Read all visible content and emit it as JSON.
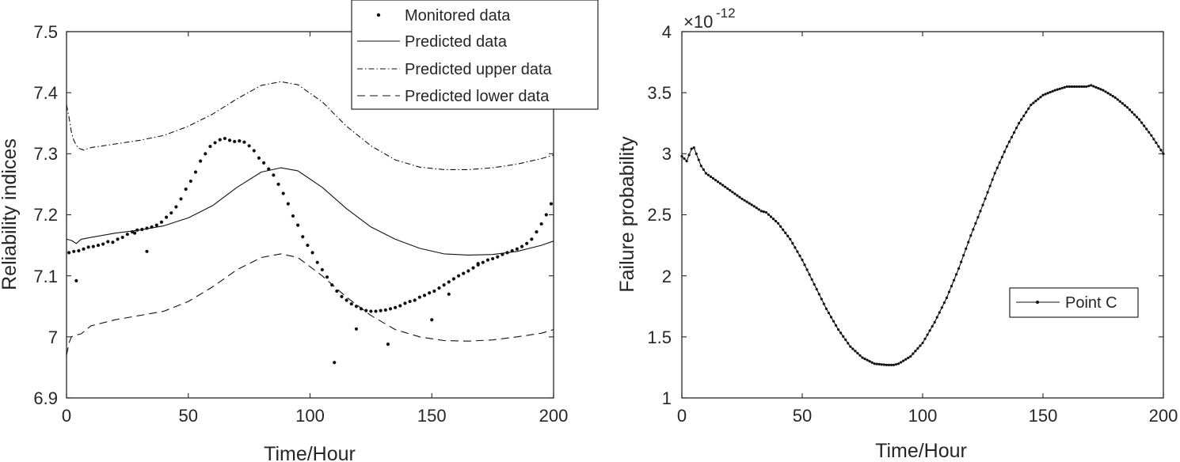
{
  "chart_data": [
    {
      "type": "line",
      "xlabel": "Time/Hour",
      "ylabel": "Reliability indices",
      "xlim": [
        0,
        200
      ],
      "ylim": [
        6.9,
        7.5
      ],
      "xticks": [
        "0",
        "50",
        "100",
        "150",
        "200"
      ],
      "yticks": [
        "6.9",
        "7",
        "7.1",
        "7.2",
        "7.3",
        "7.4",
        "7.5"
      ],
      "legend_position": "top-right",
      "legend": [
        "Monitored data",
        "Predicted data",
        "Predicted upper data",
        "Predicted lower data"
      ],
      "series": [
        {
          "name": "Predicted data",
          "style": "solid",
          "x": [
            0,
            2,
            4,
            6,
            10,
            20,
            30,
            40,
            50,
            60,
            70,
            80,
            88,
            95,
            105,
            115,
            125,
            135,
            145,
            155,
            165,
            175,
            185,
            195,
            200
          ],
          "y": [
            7.16,
            7.158,
            7.153,
            7.16,
            7.163,
            7.17,
            7.175,
            7.182,
            7.195,
            7.215,
            7.245,
            7.27,
            7.277,
            7.272,
            7.245,
            7.21,
            7.18,
            7.16,
            7.145,
            7.136,
            7.134,
            7.135,
            7.14,
            7.15,
            7.157
          ]
        },
        {
          "name": "Predicted upper data",
          "style": "dashdot",
          "x": [
            0,
            1,
            2,
            3,
            4,
            5,
            7,
            10,
            20,
            30,
            40,
            50,
            60,
            70,
            80,
            88,
            95,
            105,
            115,
            125,
            135,
            145,
            155,
            165,
            175,
            185,
            195,
            200
          ],
          "y": [
            7.38,
            7.36,
            7.335,
            7.322,
            7.314,
            7.309,
            7.306,
            7.31,
            7.316,
            7.322,
            7.33,
            7.345,
            7.365,
            7.39,
            7.412,
            7.418,
            7.413,
            7.385,
            7.345,
            7.313,
            7.29,
            7.278,
            7.274,
            7.274,
            7.277,
            7.283,
            7.292,
            7.298
          ]
        },
        {
          "name": "Predicted lower data",
          "style": "dashed",
          "x": [
            0,
            1,
            2,
            3,
            4,
            6,
            10,
            20,
            30,
            40,
            50,
            60,
            70,
            80,
            88,
            95,
            105,
            115,
            125,
            135,
            145,
            155,
            165,
            175,
            185,
            195,
            200
          ],
          "y": [
            6.97,
            6.99,
            7.0,
            7.002,
            7.003,
            7.005,
            7.018,
            7.028,
            7.035,
            7.042,
            7.058,
            7.082,
            7.11,
            7.13,
            7.136,
            7.13,
            7.1,
            7.065,
            7.035,
            7.012,
            7.0,
            6.994,
            6.993,
            6.995,
            7.0,
            7.006,
            7.012
          ]
        },
        {
          "name": "Monitored data",
          "style": "points",
          "x": [
            1,
            3,
            5,
            7,
            9,
            11,
            13,
            15,
            17,
            19,
            21,
            23,
            25,
            27,
            29,
            31,
            33,
            35,
            37,
            39,
            41,
            43,
            45,
            47,
            49,
            51,
            53,
            55,
            57,
            59,
            61,
            63,
            65,
            67,
            69,
            71,
            73,
            75,
            77,
            79,
            81,
            83,
            85,
            87,
            89,
            91,
            93,
            95,
            97,
            99,
            101,
            103,
            105,
            107,
            109,
            111,
            113,
            115,
            117,
            119,
            121,
            123,
            125,
            127,
            129,
            131,
            133,
            135,
            137,
            139,
            141,
            143,
            145,
            147,
            149,
            151,
            153,
            155,
            157,
            159,
            161,
            163,
            165,
            167,
            169,
            171,
            173,
            175,
            177,
            179,
            181,
            183,
            185,
            187,
            189,
            191,
            193,
            195,
            197,
            199,
            4,
            28,
            33,
            110,
            119,
            132,
            150,
            157,
            169
          ],
          "y": [
            7.138,
            7.14,
            7.141,
            7.144,
            7.147,
            7.148,
            7.15,
            7.152,
            7.156,
            7.155,
            7.16,
            7.163,
            7.168,
            7.172,
            7.175,
            7.176,
            7.178,
            7.18,
            7.183,
            7.188,
            7.196,
            7.203,
            7.213,
            7.226,
            7.242,
            7.255,
            7.27,
            7.288,
            7.3,
            7.312,
            7.318,
            7.323,
            7.325,
            7.322,
            7.32,
            7.321,
            7.319,
            7.313,
            7.305,
            7.293,
            7.285,
            7.275,
            7.265,
            7.25,
            7.235,
            7.218,
            7.198,
            7.183,
            7.164,
            7.15,
            7.138,
            7.122,
            7.11,
            7.098,
            7.085,
            7.075,
            7.066,
            7.06,
            7.054,
            7.05,
            7.046,
            7.043,
            7.042,
            7.042,
            7.043,
            7.044,
            7.046,
            7.048,
            7.051,
            7.055,
            7.058,
            7.06,
            7.065,
            7.068,
            7.072,
            7.075,
            7.08,
            7.085,
            7.09,
            7.095,
            7.1,
            7.104,
            7.108,
            7.113,
            7.118,
            7.122,
            7.126,
            7.128,
            7.131,
            7.135,
            7.138,
            7.141,
            7.144,
            7.148,
            7.153,
            7.16,
            7.172,
            7.185,
            7.2,
            7.218,
            7.092,
            7.17,
            7.14,
            6.958,
            7.013,
            6.988,
            7.028,
            7.07,
            7.12
          ]
        }
      ]
    },
    {
      "type": "line",
      "xlabel": "Time/Hour",
      "ylabel": "Failure probability",
      "xlim": [
        0,
        200
      ],
      "ylim": [
        1,
        4
      ],
      "xticks": [
        "0",
        "50",
        "100",
        "150",
        "200"
      ],
      "yticks": [
        "1",
        "1.5",
        "2",
        "2.5",
        "3",
        "3.5",
        "4"
      ],
      "exponent_base": "×10",
      "exponent_power": "-12",
      "legend_position": "lower-right",
      "legend": [
        "Point C"
      ],
      "series": [
        {
          "name": "Point C",
          "style": "solid-dotted",
          "x": [
            0,
            2,
            4,
            5,
            6,
            8,
            10,
            15,
            20,
            25,
            30,
            33,
            35,
            40,
            45,
            50,
            55,
            60,
            65,
            70,
            75,
            80,
            85,
            88,
            90,
            95,
            100,
            105,
            110,
            115,
            120,
            125,
            130,
            135,
            140,
            145,
            150,
            155,
            160,
            163,
            165,
            168,
            170,
            175,
            180,
            185,
            190,
            195,
            200
          ],
          "y": [
            2.98,
            2.94,
            3.04,
            3.05,
            3.0,
            2.9,
            2.84,
            2.77,
            2.7,
            2.63,
            2.57,
            2.53,
            2.52,
            2.43,
            2.3,
            2.13,
            1.93,
            1.73,
            1.56,
            1.42,
            1.33,
            1.28,
            1.27,
            1.27,
            1.28,
            1.34,
            1.45,
            1.62,
            1.82,
            2.06,
            2.33,
            2.58,
            2.84,
            3.06,
            3.25,
            3.4,
            3.48,
            3.52,
            3.55,
            3.55,
            3.55,
            3.55,
            3.56,
            3.52,
            3.46,
            3.38,
            3.28,
            3.15,
            3.0
          ]
        }
      ]
    }
  ]
}
